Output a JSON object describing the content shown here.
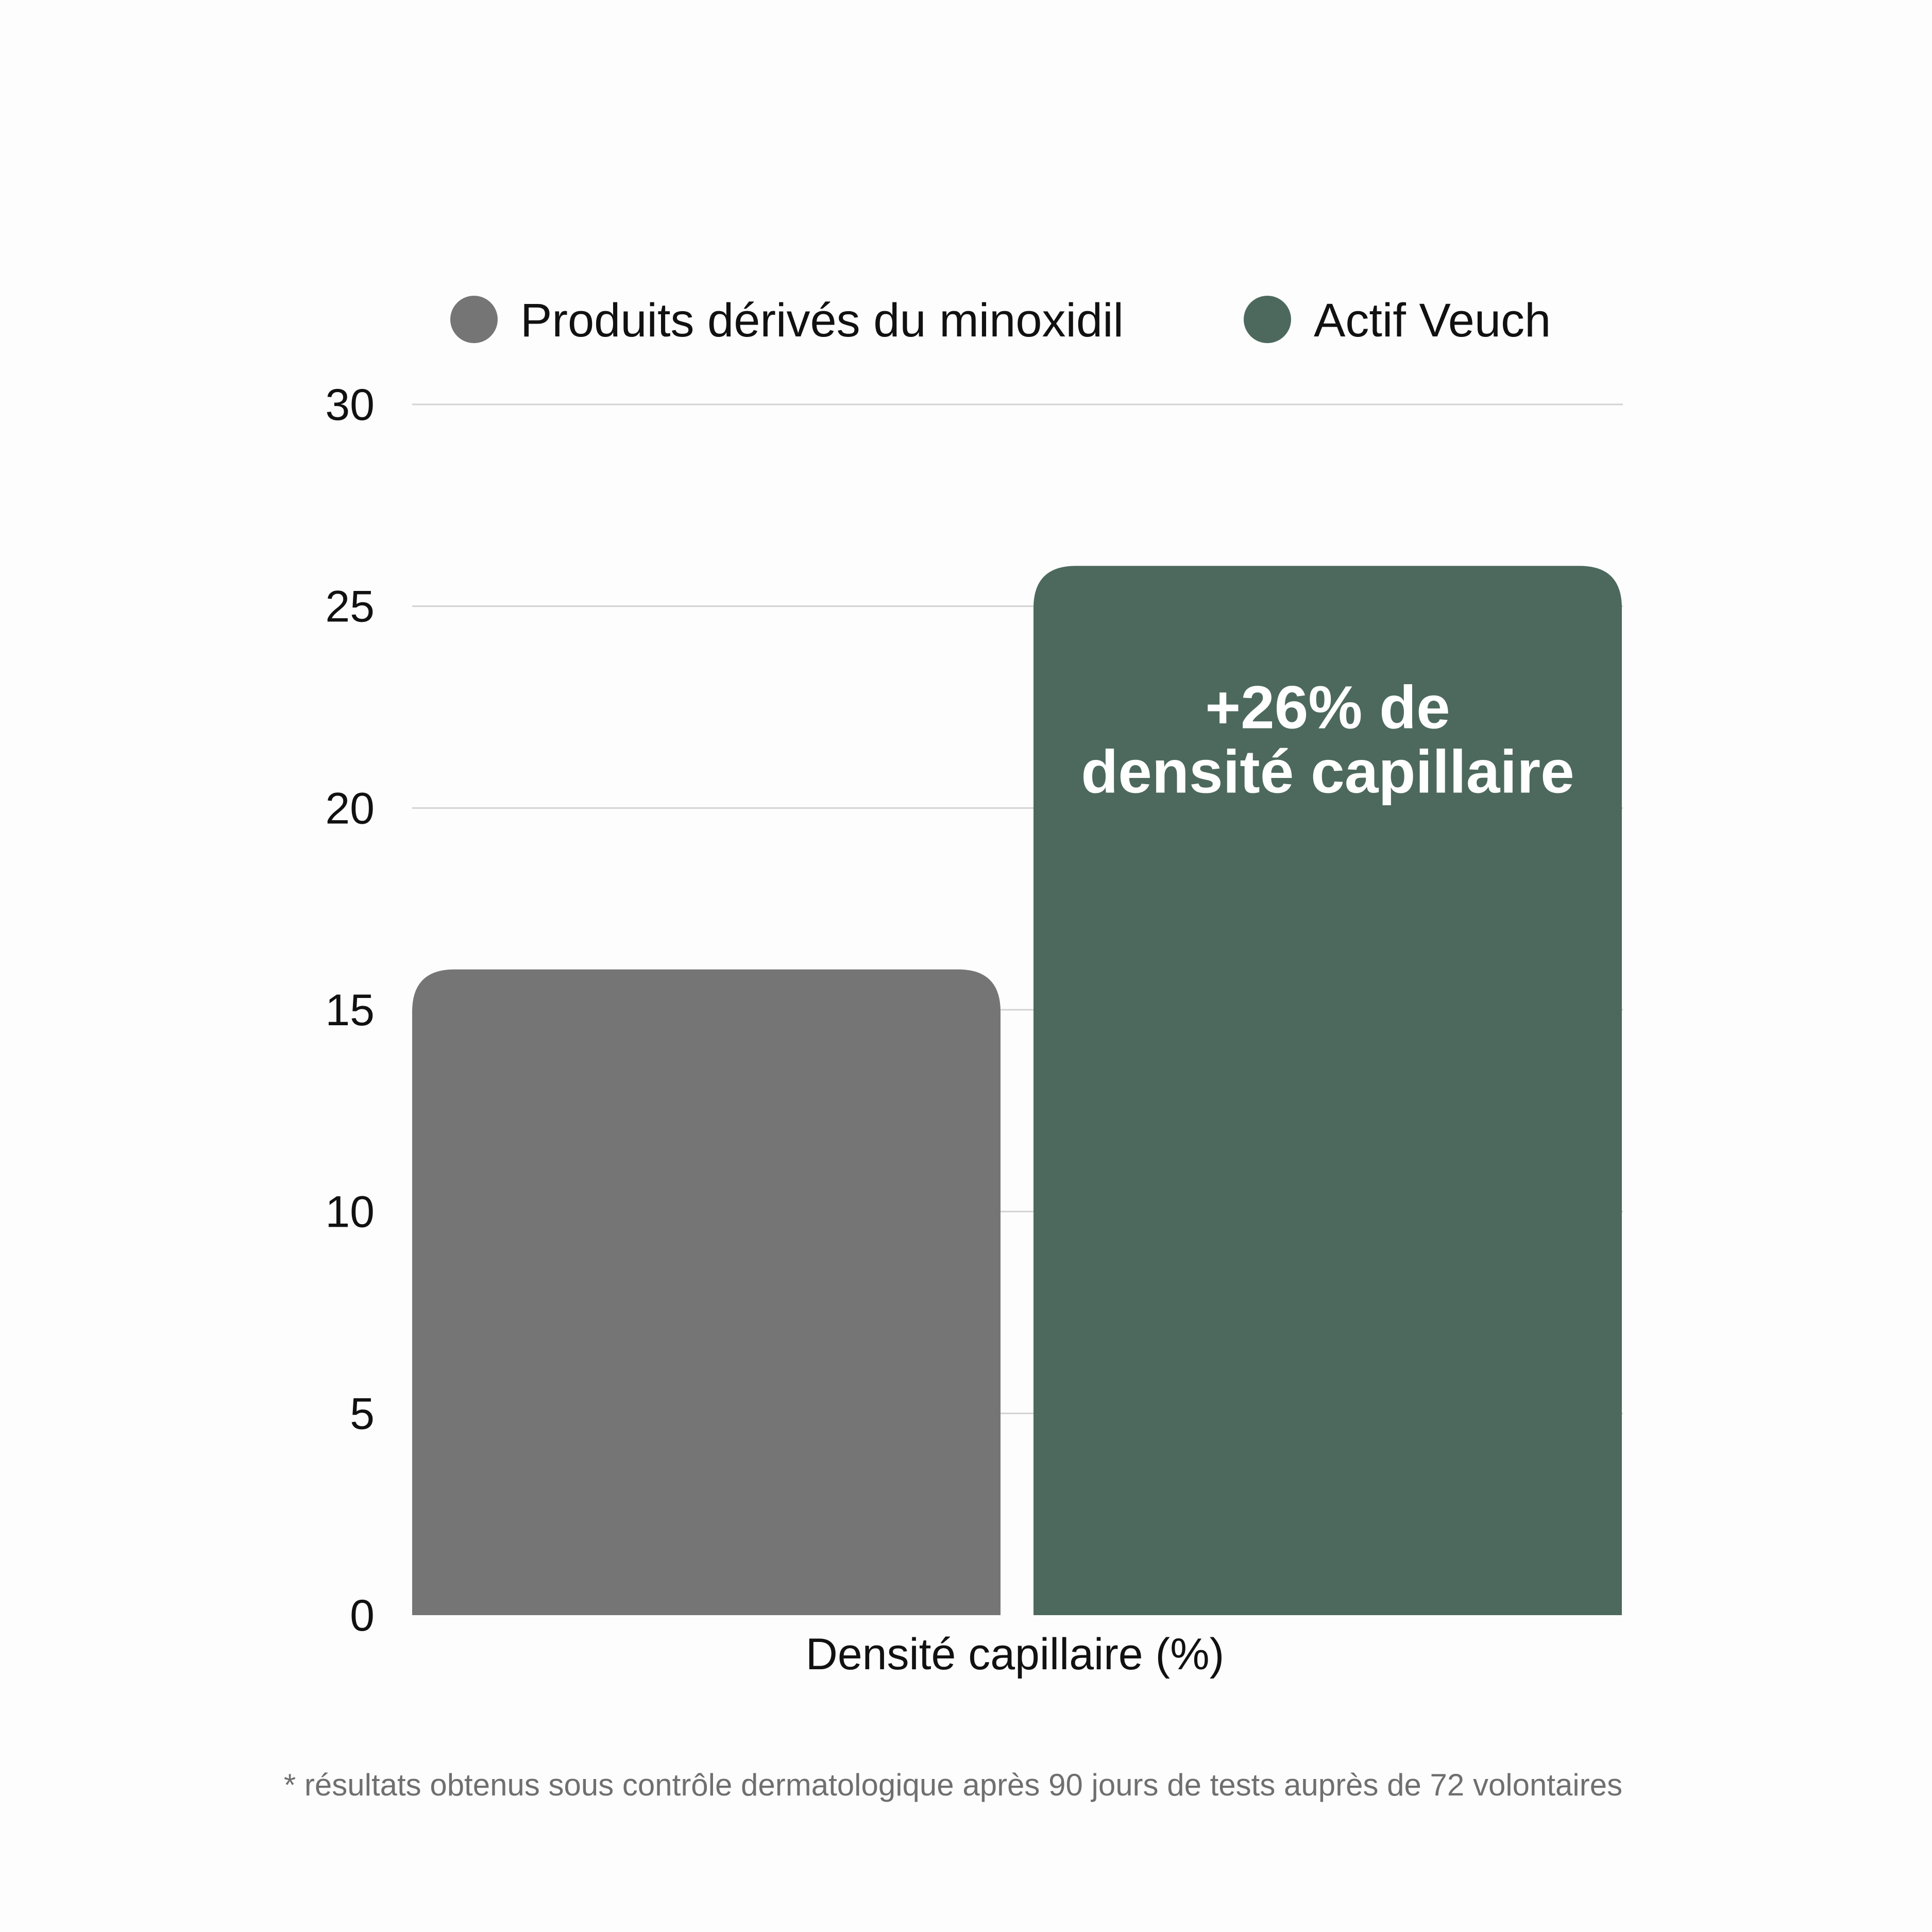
{
  "chart_data": {
    "type": "bar",
    "categories": [
      "Densité capillaire (%)"
    ],
    "series": [
      {
        "name": "Produits dérivés du minoxidil",
        "values": [
          16
        ],
        "color": "#757575"
      },
      {
        "name": "Actif Veuch",
        "values": [
          26
        ],
        "color": "#4d695e"
      }
    ],
    "xlabel": "Densité capillaire (%)",
    "ylabel": "",
    "ylim": [
      0,
      30
    ],
    "yticks": [
      "0",
      "5",
      "10",
      "15",
      "20",
      "25",
      "30"
    ],
    "grid": true,
    "legend_position": "top-center",
    "annotation": {
      "series": "Actif Veuch",
      "lines": [
        "+26% de",
        "densité capillaire"
      ]
    }
  },
  "footnote": "* résultats obtenus sous contrôle dermatologique après 90 jours de tests auprès de 72 volontaires"
}
